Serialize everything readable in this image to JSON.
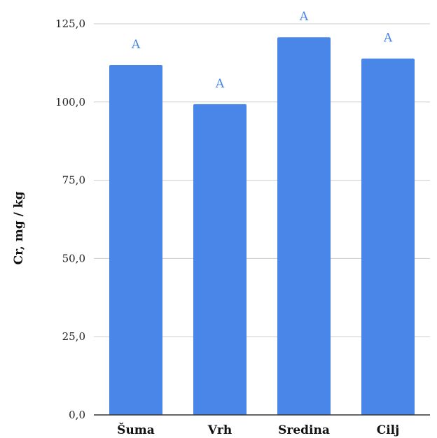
{
  "chart_data": {
    "type": "bar",
    "title": "",
    "xlabel": "",
    "ylabel": "Cr, mg / kg",
    "categories": [
      "Šuma",
      "Vrh",
      "Sredina",
      "Cilj"
    ],
    "series": [
      {
        "values": [
          111.8,
          99.3,
          120.7,
          113.9
        ]
      }
    ],
    "data_labels": [
      "A",
      "A",
      "A",
      "A"
    ],
    "ylim": [
      0,
      125
    ],
    "yticks": [
      0,
      25,
      50,
      75,
      100,
      125
    ],
    "ytick_labels": [
      "0,0",
      "25,0",
      "50,0",
      "75,0",
      "100,0",
      "125,0"
    ],
    "grid": true,
    "legend": "none",
    "colors": {
      "bar": "#4a86e8",
      "data_label": "#4a86e8",
      "grid": "#cccccc",
      "axis": "#333333"
    }
  }
}
